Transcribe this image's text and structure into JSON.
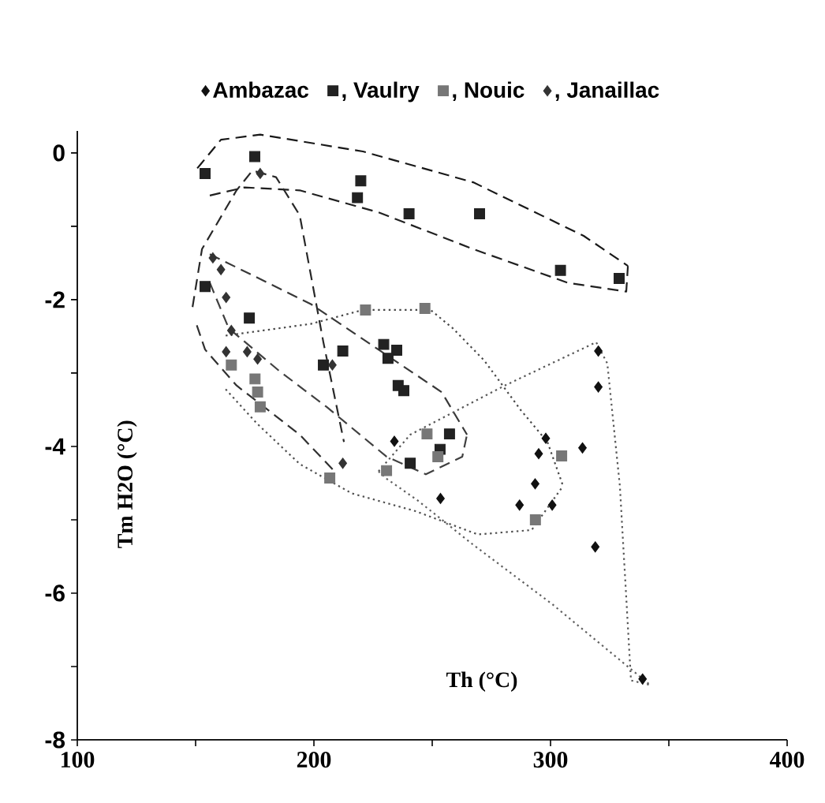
{
  "chart_data": {
    "type": "scatter",
    "xlabel": "Th (°C)",
    "ylabel": "Tm H2O (°C)",
    "xlim": [
      100,
      400
    ],
    "ylim": [
      -8,
      0.3
    ],
    "xticks": [
      100,
      {
        "value": 150,
        "label": null
      },
      200,
      {
        "value": 250,
        "label": null
      },
      300,
      {
        "value": 350,
        "label": null
      },
      400
    ],
    "yticks": [
      -8,
      {
        "value": -7,
        "label": null
      },
      -6,
      {
        "value": -5,
        "label": null
      },
      -4,
      {
        "value": -3,
        "label": null
      },
      -2,
      {
        "value": -1,
        "label": null
      },
      0
    ],
    "legend": "top",
    "series": [
      {
        "name": "Ambazac",
        "color": "#111111",
        "marker": "diamond",
        "x": [
          234,
          253.5,
          298,
          295,
          313.5,
          293.5,
          286.9,
          300.7,
          318.9,
          320.2,
          320.2,
          338.9
        ],
        "values": [
          -3.93,
          -4.71,
          -3.89,
          -4.1,
          -4.02,
          -4.51,
          -4.8,
          -4.8,
          -5.37,
          -2.7,
          -3.19,
          -7.17
        ]
      },
      {
        "name": ", Vaulry",
        "color": "#222222",
        "marker": "square",
        "x": [
          154,
          175,
          219.8,
          218.4,
          240.2,
          270,
          304.2,
          329,
          154,
          172.7,
          212.2,
          204,
          229.5,
          235,
          231.3,
          235.6,
          238,
          257.3,
          253.3,
          240.7
        ],
        "values": [
          -0.28,
          -0.05,
          -0.38,
          -0.61,
          -0.83,
          -0.83,
          -1.6,
          -1.71,
          -1.82,
          -2.25,
          -2.7,
          -2.89,
          -2.61,
          -2.69,
          -2.8,
          -3.17,
          -3.24,
          -3.83,
          -4.04,
          -4.23
        ]
      },
      {
        "name": ", Nouic",
        "color": "#777777",
        "marker": "square",
        "x": [
          221.8,
          246.9,
          165.1,
          175.1,
          176.2,
          177.3,
          206.7,
          230.7,
          247.8,
          252.4,
          304.7,
          293.6
        ],
        "values": [
          -2.14,
          -2.12,
          -2.89,
          -3.08,
          -3.26,
          -3.46,
          -4.43,
          -4.33,
          -3.83,
          -4.14,
          -4.13,
          -5.0
        ]
      },
      {
        "name": ", Janaillac",
        "color": "#333333",
        "marker": "diamond",
        "x": [
          157.3,
          160.7,
          162.9,
          165.1,
          162.9,
          171.8,
          176.2,
          177.3,
          212.2,
          207.8
        ],
        "values": [
          -1.43,
          -1.59,
          -1.97,
          -2.42,
          -2.71,
          -2.71,
          -2.81,
          -0.28,
          -4.23,
          -2.89
        ]
      },
      {
        "type": "line",
        "color": "#181818",
        "line_style": "dashed",
        "x": [
          150.7,
          160.7,
          177.3,
          220.7,
          267.3,
          314,
          332.7
        ],
        "values": [
          -0.21,
          0.18,
          0.25,
          0.02,
          -0.4,
          -1.13,
          -1.54
        ]
      },
      {
        "type": "line",
        "color": "#202020",
        "line_style": "dashed",
        "x": [
          156,
          170.7,
          194,
          227.3,
          267.3,
          307.3,
          332,
          332.7
        ],
        "values": [
          -0.58,
          -0.47,
          -0.51,
          -0.81,
          -1.31,
          -1.77,
          -1.89,
          -1.54
        ]
      },
      {
        "type": "line",
        "color": "#282828",
        "line_style": "dashed",
        "x": [
          148.7,
          152.7,
          167.3,
          174,
          184,
          194,
          204,
          212.7
        ],
        "values": [
          -2.1,
          -1.31,
          -0.51,
          -0.24,
          -0.33,
          -0.85,
          -2.58,
          -3.94
        ]
      },
      {
        "type": "line",
        "color": "#303030",
        "line_style": "dashed",
        "x": [
          150.5,
          154,
          167.3,
          194,
          208.7
        ],
        "values": [
          -2.35,
          -2.68,
          -3.17,
          -3.84,
          -4.34
        ]
      },
      {
        "type": "line",
        "color": "#383838",
        "line_style": "dashed",
        "x": [
          156,
          198.7,
          254,
          264.7
        ],
        "values": [
          -1.38,
          -2.06,
          -3.26,
          -3.84
        ]
      },
      {
        "type": "line",
        "color": "#404040",
        "line_style": "dashed",
        "x": [
          156,
          164,
          185.3,
          205.3,
          230.7,
          247.3,
          262.7,
          264.7
        ],
        "values": [
          -1.77,
          -2.39,
          -2.97,
          -3.46,
          -4.14,
          -4.38,
          -4.14,
          -3.84
        ]
      },
      {
        "type": "line",
        "color": "#484848",
        "line_style": "dotted",
        "x": [
          162.7,
          198.7,
          220.7,
          249.3,
          258.7,
          272,
          287.3,
          298.7,
          305.3
        ],
        "values": [
          -2.49,
          -2.33,
          -2.14,
          -2.14,
          -2.39,
          -2.83,
          -3.5,
          -3.94,
          -4.54
        ]
      },
      {
        "type": "line",
        "color": "#505050",
        "line_style": "dotted",
        "x": [
          162.7,
          176,
          194,
          216,
          242.7,
          269.3,
          292,
          305.3
        ],
        "values": [
          -3.22,
          -3.69,
          -4.24,
          -4.64,
          -4.88,
          -5.2,
          -5.14,
          -4.54
        ]
      },
      {
        "type": "line",
        "color": "#585858",
        "line_style": "dotted",
        "x": [
          227.3,
          240.7,
          280.7,
          319.3,
          324,
          329.3,
          334,
          342
        ],
        "values": [
          -4.34,
          -3.84,
          -3.17,
          -2.58,
          -2.87,
          -4.54,
          -7.19,
          -7.25
        ]
      },
      {
        "type": "line",
        "color": "#606060",
        "line_style": "dotted",
        "x": [
          227.3,
          230.7,
          244,
          267.3,
          300.7,
          342
        ],
        "values": [
          -4.34,
          -4.44,
          -4.74,
          -5.34,
          -6.15,
          -7.25
        ]
      }
    ]
  }
}
